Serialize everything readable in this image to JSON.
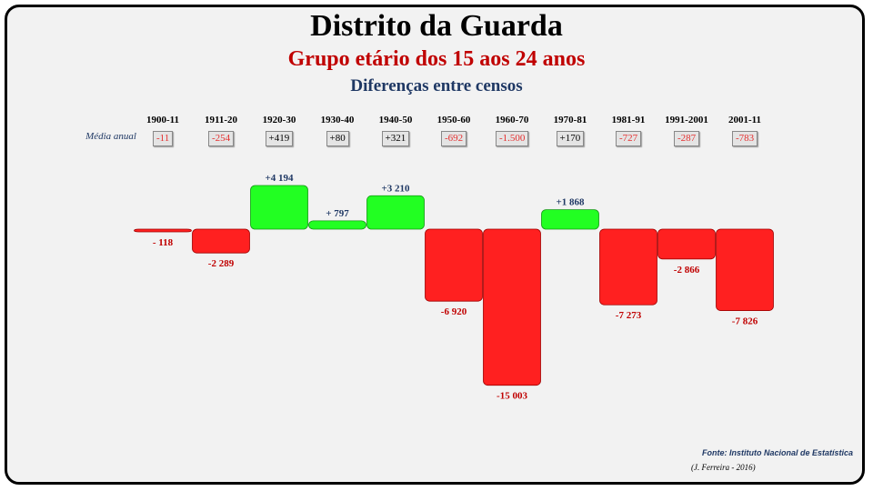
{
  "chart_data": {
    "type": "bar",
    "title": "Distrito da Guarda",
    "subtitle": "Grupo etário dos 15 aos 24 anos",
    "subtitle2": "Diferenças entre censos",
    "categories": [
      "1900-11",
      "1911-20",
      "1920-30",
      "1930-40",
      "1940-50",
      "1950-60",
      "1960-70",
      "1970-81",
      "1981-91",
      "1991-2001",
      "2001-11"
    ],
    "values": [
      -118,
      -2289,
      4194,
      797,
      3210,
      -6920,
      -15003,
      1868,
      -7273,
      -2866,
      -7826
    ],
    "value_labels": [
      "- 118",
      "-2 289",
      "+4 194",
      "+ 797",
      "+3 210",
      "-6 920",
      "-15 003",
      "+1 868",
      "-7 273",
      "-2 866",
      "-7 826"
    ],
    "average_label": "Média anual",
    "annual_averages": [
      "-11",
      "-254",
      "+419",
      "+80",
      "+321",
      "-692",
      "-1.500",
      "+170",
      "-727",
      "-287",
      "-783"
    ],
    "ylim": [
      -15003,
      4194
    ],
    "colors": {
      "positive": "#22ff22",
      "negative": "#ff2020",
      "positive_label": "#1f3864",
      "negative_label": "#c00000"
    },
    "grid": false,
    "legend": "none"
  },
  "footer": {
    "source": "Fonte: Instituto Nacional de Estatística",
    "credit": "(J. Ferreira - 2016)"
  }
}
